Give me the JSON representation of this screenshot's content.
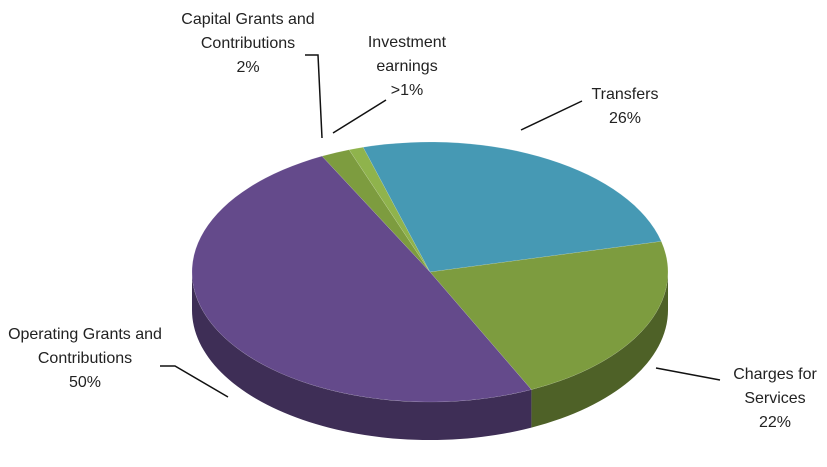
{
  "chart_data": {
    "type": "pie3d",
    "categories": [
      "Capital Grants and Contributions",
      "Investment earnings",
      "Transfers",
      "Charges for Services",
      "Operating Grants and Contributions"
    ],
    "values": [
      2,
      1,
      26,
      22,
      50
    ],
    "value_labels": [
      "2%",
      ">1%",
      "26%",
      "22%",
      "50%"
    ],
    "colors": [
      "#7d9c3f",
      "#8fb34c",
      "#4699b4",
      "#7d9c3f",
      "#644a8b"
    ]
  }
}
